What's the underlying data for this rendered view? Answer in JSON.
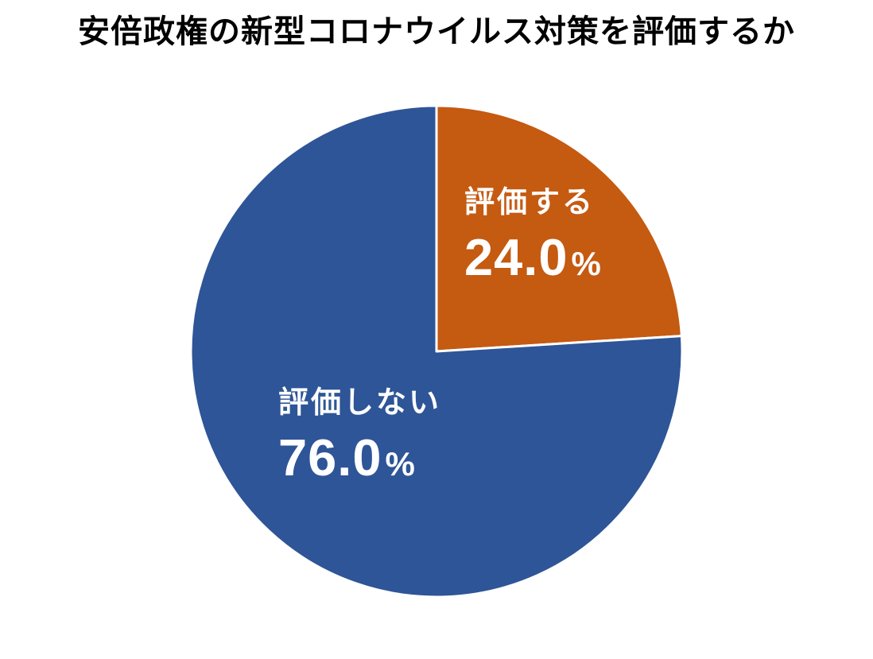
{
  "chart_data": {
    "type": "pie",
    "title": "安倍政権の新型コロナウイルス対策を評価するか",
    "unit": "%",
    "start_angle_deg": 0,
    "direction": "clockwise",
    "legend": "none",
    "labels_inside": true,
    "title_color": "#000000",
    "background_color": "#FFFFFF",
    "slice_border_color": "#FFFFFF",
    "slices": [
      {
        "name": "approve",
        "label": "評価する",
        "value": 24.0,
        "value_label": "24.0",
        "color": "#C55A11",
        "label_color": "#FFFFFF"
      },
      {
        "name": "disapprove",
        "label": "評価しない",
        "value": 76.0,
        "value_label": "76.0",
        "color": "#2E5597",
        "label_color": "#FFFFFF"
      }
    ]
  }
}
